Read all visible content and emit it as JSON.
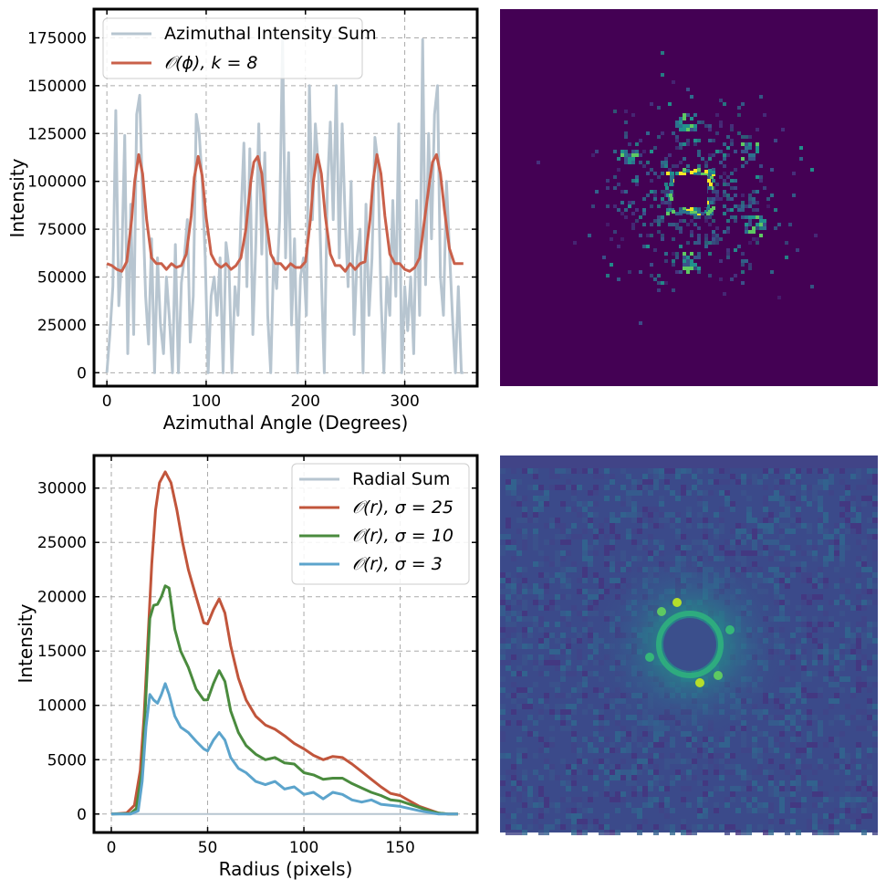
{
  "chart_data": [
    {
      "type": "line",
      "xlabel": "Azimuthal Angle (Degrees)",
      "ylabel": "Intensity",
      "xlim": [
        -13,
        373
      ],
      "ylim": [
        -7000,
        190000
      ],
      "xticks": [
        0,
        100,
        200,
        300
      ],
      "yticks": [
        0,
        25000,
        50000,
        75000,
        100000,
        125000,
        150000,
        175000
      ],
      "grid": true,
      "legend_position": "top-left",
      "series": [
        {
          "name": "Azimuthal Intensity Sum",
          "color": "#b7c5d0",
          "x": [
            0,
            3,
            6,
            9,
            12,
            15,
            18,
            21,
            24,
            27,
            30,
            33,
            36,
            39,
            42,
            45,
            48,
            51,
            54,
            57,
            60,
            63,
            66,
            69,
            72,
            75,
            78,
            81,
            84,
            87,
            90,
            93,
            96,
            99,
            102,
            105,
            108,
            111,
            114,
            117,
            120,
            123,
            126,
            129,
            132,
            135,
            138,
            141,
            144,
            147,
            150,
            153,
            156,
            159,
            162,
            165,
            168,
            171,
            174,
            177,
            180,
            183,
            186,
            189,
            192,
            195,
            198,
            201,
            204,
            207,
            210,
            213,
            216,
            219,
            222,
            225,
            228,
            231,
            234,
            237,
            240,
            243,
            246,
            249,
            252,
            255,
            258,
            261,
            264,
            267,
            270,
            273,
            276,
            279,
            282,
            285,
            288,
            291,
            294,
            297,
            300,
            303,
            306,
            309,
            312,
            315,
            318,
            321,
            324,
            327,
            330,
            333,
            336,
            339,
            342,
            345,
            348,
            351,
            354,
            357,
            359
          ],
          "y": [
            0,
            20000,
            45000,
            137000,
            35000,
            60000,
            124000,
            10000,
            88000,
            20000,
            135000,
            145000,
            90000,
            40000,
            15000,
            70000,
            0,
            60000,
            25000,
            10000,
            50000,
            28000,
            0,
            67000,
            0,
            47000,
            60000,
            80000,
            16000,
            40000,
            135000,
            125000,
            100000,
            60000,
            0,
            40000,
            50000,
            30000,
            60000,
            0,
            68000,
            55000,
            0,
            45000,
            30000,
            80000,
            120000,
            45000,
            117000,
            20000,
            68000,
            130000,
            62000,
            115000,
            30000,
            0,
            60000,
            44000,
            80000,
            174000,
            60000,
            115000,
            25000,
            70000,
            0,
            50000,
            60000,
            30000,
            150000,
            80000,
            130000,
            108000,
            50000,
            0,
            95000,
            131000,
            80000,
            150000,
            60000,
            130000,
            80000,
            45000,
            100000,
            20000,
            60000,
            75000,
            0,
            88000,
            30000,
            60000,
            123000,
            110000,
            40000,
            0,
            50000,
            30000,
            90000,
            40000,
            130000,
            0,
            45000,
            22000,
            50000,
            10000,
            90000,
            30000,
            174000,
            46000,
            125000,
            70000,
            135000,
            150000,
            50000,
            30000,
            100000,
            65000,
            30000,
            0,
            45000,
            0,
            0
          ]
        },
        {
          "name": "𝒪(ϕ),  k = 8",
          "color": "#c9604a",
          "x": [
            0,
            5,
            10,
            15,
            20,
            25,
            28,
            32,
            36,
            40,
            45,
            50,
            55,
            60,
            65,
            70,
            75,
            80,
            85,
            88,
            92,
            96,
            100,
            105,
            110,
            115,
            120,
            125,
            130,
            135,
            140,
            145,
            148,
            152,
            156,
            160,
            165,
            170,
            175,
            180,
            185,
            190,
            195,
            200,
            205,
            208,
            212,
            216,
            220,
            225,
            230,
            235,
            240,
            245,
            250,
            255,
            260,
            265,
            268,
            272,
            276,
            280,
            285,
            290,
            295,
            300,
            305,
            310,
            315,
            320,
            325,
            328,
            332,
            336,
            340,
            345,
            350,
            355,
            359
          ],
          "y": [
            57000,
            56000,
            54000,
            53000,
            58000,
            80000,
            100000,
            114000,
            104000,
            80000,
            60000,
            57000,
            57000,
            54000,
            57000,
            55000,
            56000,
            62000,
            82000,
            102000,
            113000,
            103000,
            81000,
            62000,
            57000,
            55000,
            57000,
            54000,
            56000,
            60000,
            75000,
            100000,
            110000,
            113000,
            104000,
            82000,
            62000,
            57000,
            57000,
            54000,
            57000,
            55000,
            55000,
            58000,
            80000,
            100000,
            114000,
            104000,
            82000,
            62000,
            56000,
            56000,
            53000,
            57000,
            54000,
            57000,
            58000,
            80000,
            100000,
            114000,
            104000,
            82000,
            62000,
            57000,
            57000,
            54000,
            53000,
            55000,
            60000,
            80000,
            100000,
            110000,
            114000,
            104000,
            85000,
            65000,
            57000,
            57000,
            57000
          ]
        }
      ]
    },
    {
      "type": "heatmap"
    },
    {
      "type": "line",
      "xlabel": "Radius (pixels)",
      "ylabel": "Intensity",
      "xlim": [
        -9,
        190
      ],
      "ylim": [
        -1700,
        33000
      ],
      "xticks": [
        0,
        50,
        100,
        150
      ],
      "yticks": [
        0,
        5000,
        10000,
        15000,
        20000,
        25000,
        30000
      ],
      "grid": true,
      "legend_position": "top-right",
      "series": [
        {
          "name": "Radial Sum",
          "color": "#b7c5d0",
          "x": [
            0,
            180
          ],
          "y": [
            0,
            0
          ]
        },
        {
          "name": "𝒪(r),  σ = 25",
          "color": "#c1553b",
          "x": [
            0,
            8,
            12,
            15,
            17,
            19,
            21,
            23,
            25,
            28,
            31,
            34,
            37,
            40,
            44,
            48,
            50,
            53,
            56,
            59,
            62,
            66,
            70,
            75,
            80,
            85,
            90,
            95,
            100,
            105,
            110,
            115,
            120,
            125,
            130,
            135,
            140,
            145,
            150,
            155,
            160,
            165,
            170,
            175,
            180
          ],
          "y": [
            0,
            100,
            800,
            4000,
            9000,
            16000,
            23000,
            28000,
            30500,
            31500,
            30500,
            28000,
            25000,
            22500,
            20000,
            17600,
            17500,
            18800,
            19800,
            18500,
            15500,
            12500,
            10500,
            9000,
            8200,
            7800,
            7200,
            6500,
            6000,
            5400,
            5000,
            5300,
            5200,
            4600,
            3900,
            3200,
            2500,
            1900,
            1700,
            1200,
            700,
            400,
            80,
            0,
            0
          ]
        },
        {
          "name": "𝒪(r),  σ = 10",
          "color": "#4a8b3e",
          "x": [
            0,
            10,
            13,
            16,
            18,
            20,
            22,
            24,
            26,
            28,
            30,
            33,
            36,
            40,
            44,
            48,
            50,
            53,
            56,
            59,
            62,
            66,
            70,
            75,
            80,
            85,
            90,
            95,
            100,
            105,
            110,
            115,
            120,
            125,
            130,
            135,
            140,
            145,
            150,
            155,
            160,
            165,
            170,
            175,
            180
          ],
          "y": [
            0,
            50,
            500,
            4000,
            11000,
            18000,
            19200,
            19300,
            20000,
            21000,
            20800,
            17000,
            15000,
            13500,
            11500,
            10500,
            10500,
            12000,
            13200,
            12200,
            9500,
            7500,
            6300,
            5500,
            5000,
            5200,
            4700,
            4600,
            3800,
            3600,
            3200,
            3300,
            3300,
            2800,
            2400,
            2000,
            1700,
            1300,
            1200,
            900,
            600,
            300,
            80,
            0,
            0
          ]
        },
        {
          "name": "𝒪(r),  σ = 3",
          "color": "#5ca4cc",
          "x": [
            0,
            10,
            14,
            16,
            18,
            20,
            22,
            24,
            26,
            28,
            30,
            33,
            36,
            40,
            44,
            48,
            50,
            53,
            56,
            59,
            62,
            66,
            70,
            75,
            80,
            85,
            90,
            95,
            100,
            105,
            110,
            115,
            120,
            125,
            130,
            135,
            140,
            145,
            150,
            155,
            160,
            165,
            170,
            175,
            180
          ],
          "y": [
            0,
            0,
            300,
            3000,
            8000,
            11000,
            10500,
            10200,
            11000,
            12000,
            11000,
            9000,
            8000,
            7500,
            6700,
            6000,
            5800,
            6800,
            7500,
            6800,
            5200,
            4200,
            3800,
            3000,
            2700,
            3000,
            2300,
            2500,
            1800,
            2000,
            1400,
            2000,
            1800,
            1300,
            1100,
            1300,
            900,
            800,
            700,
            500,
            300,
            150,
            0,
            0,
            0
          ]
        }
      ]
    },
    {
      "type": "heatmap"
    }
  ]
}
